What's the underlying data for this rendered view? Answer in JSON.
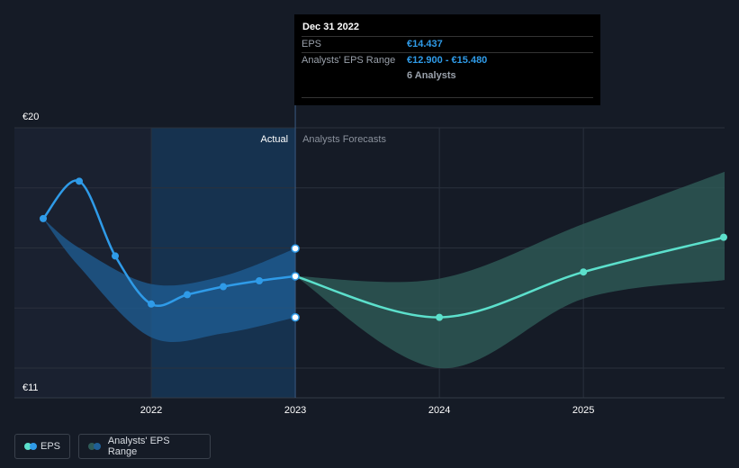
{
  "tooltip": {
    "date": "Dec 31 2022",
    "eps_label": "EPS",
    "eps_value": "€14.437",
    "range_label": "Analysts' EPS Range",
    "range_value": "€12.900 - €15.480",
    "analysts": "6 Analysts"
  },
  "labels": {
    "actual": "Actual",
    "forecast": "Analysts Forecasts"
  },
  "legend": {
    "eps": "EPS",
    "range": "Analysts' EPS Range"
  },
  "colors": {
    "background": "#151b26",
    "eps_actual": "#2f9be8",
    "eps_forecast": "#5ce0cc",
    "range_actual": "#1f5f95",
    "range_forecast": "#2e5b58"
  },
  "chart_data": {
    "type": "line",
    "xlim": [
      2021.25,
      2025.98
    ],
    "ylim": [
      11,
      20
    ],
    "y_tick_labels": [
      "€20",
      "€11"
    ],
    "x_tick_labels": [
      "2022",
      "2023",
      "2024",
      "2025"
    ],
    "x_ticks": [
      2022,
      2023,
      2024,
      2025
    ],
    "series": [
      {
        "name": "EPS",
        "x": [
          2021.25,
          2021.5,
          2021.75,
          2022.0,
          2022.25,
          2022.5,
          2022.75,
          2023.0
        ],
        "y": [
          16.6,
          18.0,
          15.2,
          13.4,
          13.75,
          14.05,
          14.27,
          14.44
        ]
      },
      {
        "name": "EPS forecast",
        "x": [
          2023.0,
          2024.0,
          2025.0,
          2025.98
        ],
        "y": [
          14.44,
          12.9,
          14.6,
          15.9
        ]
      }
    ],
    "range": [
      {
        "name": "Analysts' EPS Range",
        "x": [
          2021.25,
          2021.5,
          2022.0,
          2022.5,
          2023.0
        ],
        "low": [
          16.6,
          14.8,
          12.15,
          12.3,
          12.9
        ],
        "high": [
          16.6,
          15.5,
          14.15,
          14.45,
          15.48
        ]
      },
      {
        "name": "Analysts' EPS Range forecast",
        "x": [
          2023.0,
          2024.0,
          2025.0,
          2025.98
        ],
        "low": [
          14.44,
          11.0,
          13.6,
          14.3
        ],
        "high": [
          14.44,
          14.35,
          16.4,
          18.35
        ]
      }
    ],
    "tooltip_x": 2023.0,
    "tooltip_points_y": [
      15.48,
      14.44,
      12.9
    ]
  }
}
